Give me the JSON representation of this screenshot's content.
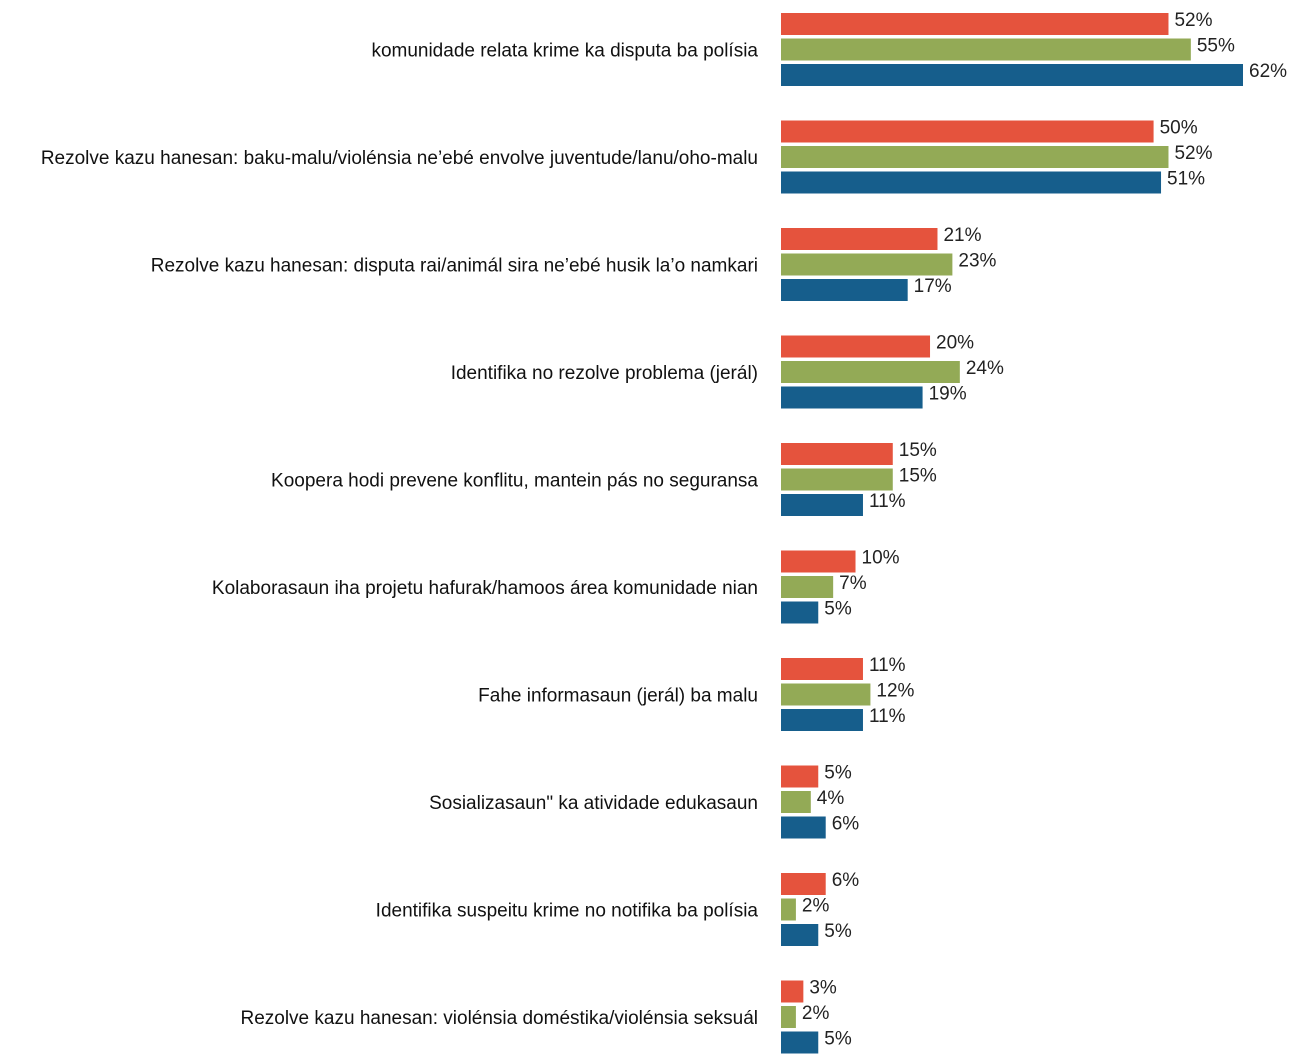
{
  "chart_data": {
    "type": "bar",
    "orientation": "horizontal",
    "categories": [
      "komunidade relata krime ka disputa ba polísia",
      "Rezolve kazu hanesan: baku-malu/violénsia ne’ebé envolve juventude/lanu/oho-malu",
      "Rezolve kazu hanesan: disputa rai/animál sira ne’ebé husik la’o namkari",
      "Identifika no rezolve problema (jerál)",
      "Koopera hodi prevene konflitu, mantein pás no seguransa",
      "Kolaborasaun iha projetu hafurak/hamoos área komunidade nian",
      "Fahe informasaun (jerál) ba malu",
      "Sosializasaun\" ka atividade edukasaun",
      "Identifika suspeitu krime no notifika ba polísia",
      "Rezolve kazu hanesan: violénsia doméstika/violénsia seksuál"
    ],
    "series": [
      {
        "color": "#e5533d",
        "values": [
          52,
          50,
          21,
          20,
          15,
          10,
          11,
          5,
          6,
          3
        ],
        "labels": [
          "52%",
          "50%",
          "21%",
          "20%",
          "15%",
          "10%",
          "11%",
          "5%",
          "6%",
          "3%"
        ]
      },
      {
        "color": "#93aa56",
        "values": [
          55,
          52,
          23,
          24,
          15,
          7,
          12,
          4,
          2,
          2
        ],
        "labels": [
          "55%",
          "52%",
          "23%",
          "24%",
          "15%",
          "7%",
          "12%",
          "4%",
          "2%",
          "2%"
        ]
      },
      {
        "color": "#165e8c",
        "values": [
          62,
          51,
          17,
          19,
          11,
          5,
          11,
          6,
          5,
          5
        ],
        "labels": [
          "62%",
          "51%",
          "17%",
          "19%",
          "11%",
          "5%",
          "11%",
          "6%",
          "5%",
          "5%"
        ]
      }
    ],
    "xlim": [
      0,
      62
    ],
    "grid": false,
    "legend": "none"
  }
}
